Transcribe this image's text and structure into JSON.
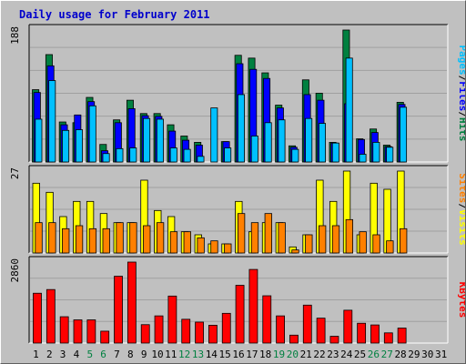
{
  "chart_data": [
    {
      "type": "bar",
      "title": "Daily usage for February 2011",
      "ymax_label": "188",
      "ymax": 188,
      "legend": [
        "Pages",
        "Files",
        "Hits"
      ],
      "legend_colors": [
        "#00c0ff",
        "#0000ff",
        "#008040"
      ],
      "categories": [
        "1",
        "2",
        "3",
        "4",
        "5",
        "6",
        "7",
        "8",
        "9",
        "10",
        "11",
        "12",
        "13",
        "14",
        "15",
        "16",
        "17",
        "18",
        "19",
        "20",
        "21",
        "22",
        "23",
        "24",
        "25",
        "26",
        "27",
        "28",
        "29",
        "30",
        "31"
      ],
      "weekend_days": [
        "5",
        "6",
        "12",
        "13",
        "19",
        "20",
        "26",
        "27"
      ],
      "series": [
        {
          "name": "Hits",
          "color": "#008040",
          "values": [
            103,
            153,
            57,
            56,
            92,
            25,
            60,
            88,
            69,
            69,
            53,
            37,
            28,
            0,
            29,
            152,
            148,
            127,
            81,
            23,
            117,
            98,
            28,
            188,
            33,
            47,
            24,
            85,
            null,
            null,
            null
          ]
        },
        {
          "name": "Files",
          "color": "#0000ff",
          "values": [
            99,
            137,
            53,
            67,
            86,
            16,
            56,
            76,
            66,
            65,
            44,
            31,
            24,
            0,
            29,
            140,
            132,
            119,
            77,
            21,
            96,
            88,
            27,
            83,
            32,
            42,
            22,
            82,
            null,
            null,
            null
          ]
        },
        {
          "name": "Pages",
          "color": "#00c0ff",
          "values": [
            61,
            116,
            45,
            46,
            80,
            12,
            19,
            20,
            62,
            61,
            20,
            18,
            8,
            77,
            20,
            96,
            37,
            56,
            60,
            18,
            62,
            55,
            27,
            148,
            11,
            28,
            21,
            78,
            null,
            null,
            null
          ]
        }
      ]
    },
    {
      "type": "bar",
      "ymax_label": "27",
      "ymax": 27,
      "legend": [
        "Sites",
        "Visits"
      ],
      "legend_colors": [
        "#ff8000",
        "#ffff00"
      ],
      "categories": [
        "1",
        "2",
        "3",
        "4",
        "5",
        "6",
        "7",
        "8",
        "9",
        "10",
        "11",
        "12",
        "13",
        "14",
        "15",
        "16",
        "17",
        "18",
        "19",
        "20",
        "21",
        "22",
        "23",
        "24",
        "25",
        "26",
        "27",
        "28",
        "29",
        "30",
        "31"
      ],
      "series": [
        {
          "name": "Visits",
          "color": "#ffff00",
          "values": [
            23,
            20,
            12,
            17,
            17,
            13,
            10,
            10,
            24,
            14,
            12,
            7,
            6,
            3,
            3,
            17,
            7,
            10,
            10,
            2,
            6,
            24,
            17,
            27,
            6,
            23,
            21,
            27,
            null,
            null,
            null
          ]
        },
        {
          "name": "Sites",
          "color": "#ff8000",
          "values": [
            10,
            10,
            8,
            9,
            8,
            8,
            10,
            10,
            9,
            10,
            7,
            7,
            5,
            4,
            3,
            13,
            10,
            13,
            10,
            1,
            6,
            9,
            9,
            11,
            7,
            6,
            4,
            8,
            null,
            null,
            null
          ]
        }
      ]
    },
    {
      "type": "bar",
      "ymax_label": "2860",
      "ymax": 2860,
      "legend": [
        "KBytes"
      ],
      "legend_colors": [
        "#ff0000"
      ],
      "categories": [
        "1",
        "2",
        "3",
        "4",
        "5",
        "6",
        "7",
        "8",
        "9",
        "10",
        "11",
        "12",
        "13",
        "14",
        "15",
        "16",
        "17",
        "18",
        "19",
        "20",
        "21",
        "22",
        "23",
        "24",
        "25",
        "26",
        "27",
        "28",
        "29",
        "30",
        "31"
      ],
      "series": [
        {
          "name": "KBytes",
          "color": "#ff0000",
          "values": [
            1760,
            1890,
            930,
            820,
            820,
            420,
            2360,
            2860,
            650,
            960,
            1660,
            840,
            740,
            630,
            1050,
            2040,
            2600,
            1670,
            960,
            280,
            1340,
            880,
            240,
            1160,
            700,
            640,
            360,
            530,
            null,
            null,
            null
          ]
        }
      ]
    }
  ]
}
